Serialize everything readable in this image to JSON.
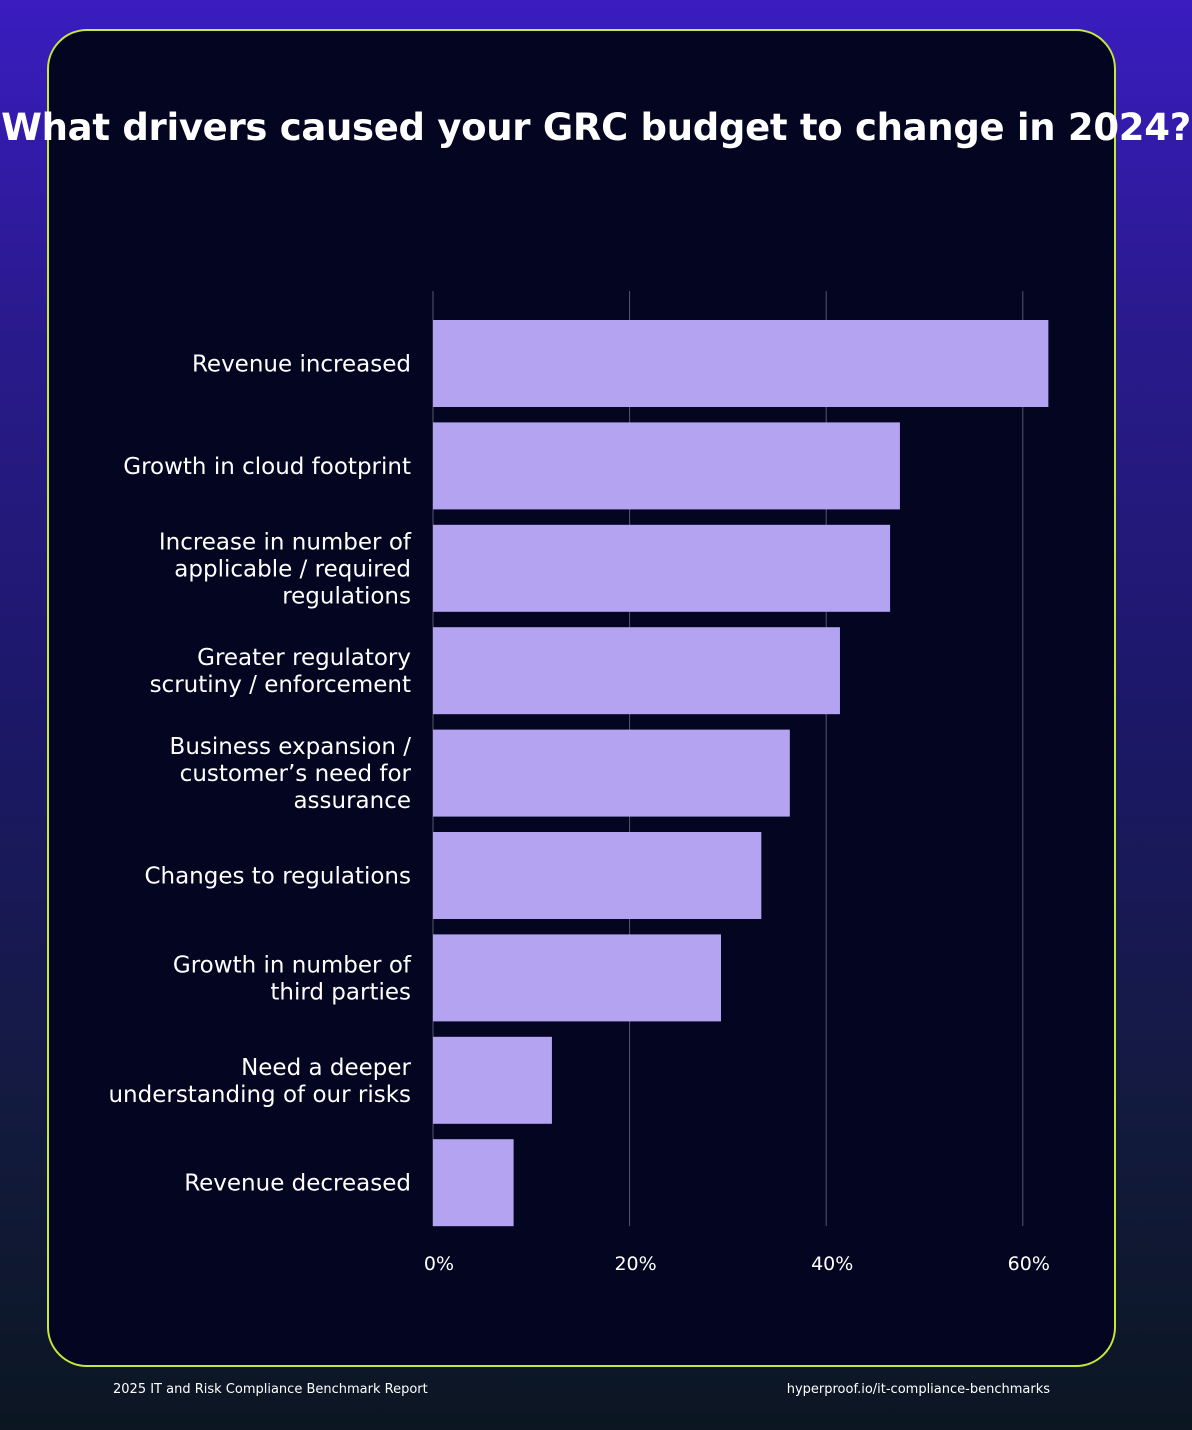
{
  "chart_data": {
    "type": "bar",
    "orientation": "horizontal",
    "title": "What drivers caused your GRC budget to change in 2024?",
    "categories": [
      "Revenue increased",
      "Growth in cloud footprint",
      "Increase in number of applicable / required regulations",
      "Greater regulatory scrutiny / enforcement",
      "Business expansion / customer’s need for assurance",
      "Changes to regulations",
      "Growth in number of third parties",
      "Need a deeper understanding of our risks",
      "Revenue decreased"
    ],
    "category_lines": [
      [
        "Revenue increased"
      ],
      [
        "Growth in cloud footprint"
      ],
      [
        "Increase in number of",
        "applicable / required",
        "regulations"
      ],
      [
        "Greater regulatory",
        "scrutiny / enforcement"
      ],
      [
        "Business expansion /",
        "customer’s need for",
        "assurance"
      ],
      [
        "Changes to regulations"
      ],
      [
        "Growth in number of",
        "third parties"
      ],
      [
        "Need a deeper",
        "understanding of our risks"
      ],
      [
        "Revenue decreased"
      ]
    ],
    "values": [
      62.6,
      47.5,
      46.5,
      41.4,
      36.3,
      33.4,
      29.3,
      12.1,
      8.2
    ],
    "x_unit": "%",
    "xlim": [
      0,
      64
    ],
    "x_ticks": [
      0,
      20,
      40,
      60
    ],
    "x_tick_labels": [
      "0%",
      "20%",
      "40%",
      "60%"
    ],
    "grid": "vertical",
    "bar_color": "#b3a3f0",
    "gridline_color": "#55566e"
  },
  "footer": {
    "report_name": "2025 IT and Risk Compliance Benchmark Report",
    "url": "hyperproof.io/it-compliance-benchmarks"
  },
  "colors": {
    "card_border": "#c6e83a",
    "card_background": "#030521",
    "text": "#ffffff"
  }
}
